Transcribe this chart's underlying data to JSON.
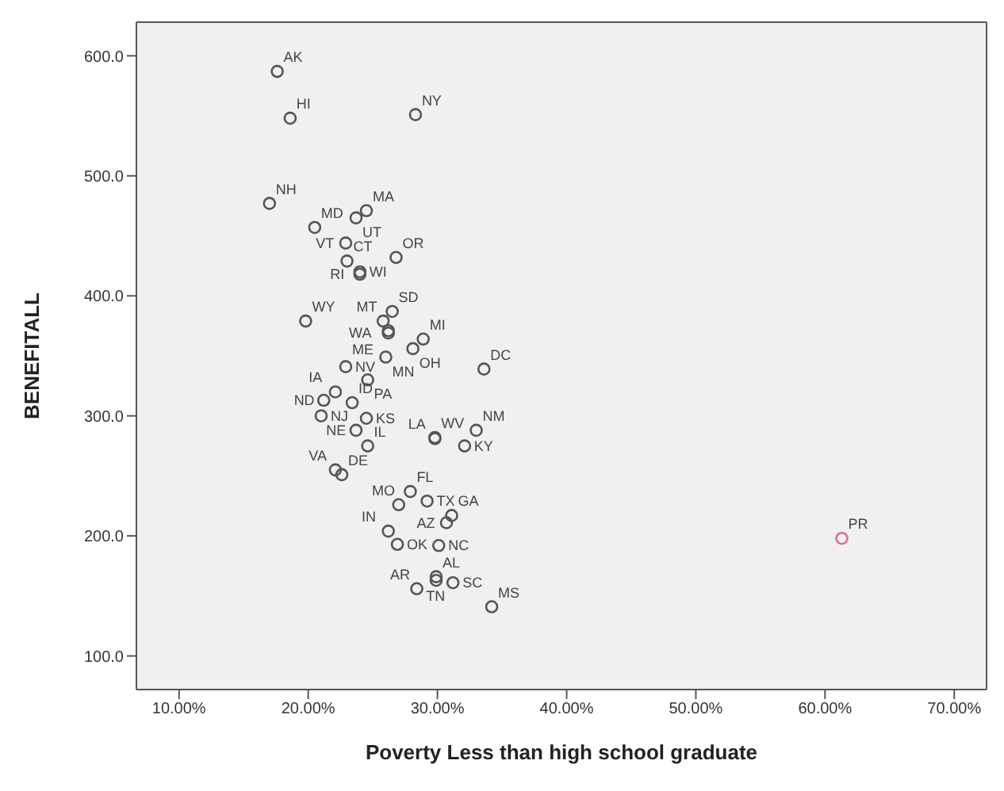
{
  "chart_data": {
    "type": "scatter",
    "xlabel": "Poverty Less than high school graduate",
    "ylabel": "BENEFITALL",
    "x": [
      17.6,
      18.6,
      28.3,
      17.0,
      20.5,
      23.7,
      24.5,
      22.9,
      26.8,
      23.0,
      24.0,
      24.0,
      19.8,
      26.5,
      25.8,
      26.2,
      26.2,
      28.9,
      28.1,
      26.0,
      22.9,
      33.6,
      24.6,
      22.1,
      23.4,
      21.0,
      21.2,
      23.7,
      24.5,
      29.8,
      29.8,
      33.0,
      32.1,
      24.6,
      22.1,
      22.6,
      27.0,
      27.9,
      29.2,
      31.1,
      30.7,
      26.2,
      26.9,
      30.1,
      29.9,
      31.2,
      28.4,
      29.9,
      34.2,
      61.3
    ],
    "values": [
      587,
      548,
      551,
      477,
      457,
      465,
      471,
      444,
      432,
      429,
      420,
      418,
      379,
      387,
      379,
      371,
      369,
      364,
      356,
      349,
      341,
      339,
      330,
      320,
      311,
      300,
      313,
      288,
      298,
      282,
      281,
      288,
      275,
      275,
      255,
      251,
      226,
      237,
      229,
      217,
      211,
      204,
      193,
      192,
      166,
      161,
      156,
      163,
      141,
      198
    ],
    "value_labels": [
      "AK",
      "HI",
      "NY",
      "NH",
      "MD",
      "UT",
      "MA",
      "VT",
      "OR",
      "CT",
      "WI",
      "RI",
      "WY",
      "SD",
      "MT",
      "ME",
      "WA",
      "MI",
      "OH",
      "MN",
      "NV",
      "DC",
      "PA",
      "IA",
      "ID",
      "NJ",
      "ND",
      "NE",
      "KS",
      "WV",
      "LA",
      "NM",
      "KY",
      "IL",
      "VA",
      "DE",
      "MO",
      "FL",
      "TX",
      "GA",
      "AZ",
      "IN",
      "OK",
      "NC",
      "AL",
      "SC",
      "AR",
      "TN",
      "MS",
      "PR"
    ],
    "colors": [
      "#555555",
      "#555555",
      "#555555",
      "#555555",
      "#555555",
      "#555555",
      "#555555",
      "#555555",
      "#555555",
      "#555555",
      "#555555",
      "#555555",
      "#555555",
      "#555555",
      "#555555",
      "#555555",
      "#555555",
      "#555555",
      "#555555",
      "#555555",
      "#555555",
      "#555555",
      "#555555",
      "#555555",
      "#555555",
      "#555555",
      "#555555",
      "#555555",
      "#555555",
      "#555555",
      "#555555",
      "#555555",
      "#555555",
      "#555555",
      "#555555",
      "#555555",
      "#555555",
      "#555555",
      "#555555",
      "#555555",
      "#555555",
      "#555555",
      "#555555",
      "#555555",
      "#555555",
      "#555555",
      "#555555",
      "#555555",
      "#555555",
      "#e0708c"
    ],
    "xlim": [
      6.7,
      72.5
    ],
    "xticks": [
      {
        "value": 10,
        "label": "10.00%"
      },
      {
        "value": 20,
        "label": "20.00%"
      },
      {
        "value": 30,
        "label": "30.00%"
      },
      {
        "value": 40,
        "label": "40.00%"
      },
      {
        "value": 50,
        "label": "50.00%"
      },
      {
        "value": 60,
        "label": "60.00%"
      },
      {
        "value": 70,
        "label": "70.00%"
      }
    ],
    "ylim": [
      72,
      628
    ],
    "yticks": [
      {
        "value": 100,
        "label": "100.0"
      },
      {
        "value": 200,
        "label": "200.0"
      },
      {
        "value": 300,
        "label": "300.0"
      },
      {
        "value": 400,
        "label": "400.0"
      },
      {
        "value": 500,
        "label": "500.0"
      },
      {
        "value": 600,
        "label": "600.0"
      }
    ],
    "marker": "circle",
    "grid": false
  }
}
